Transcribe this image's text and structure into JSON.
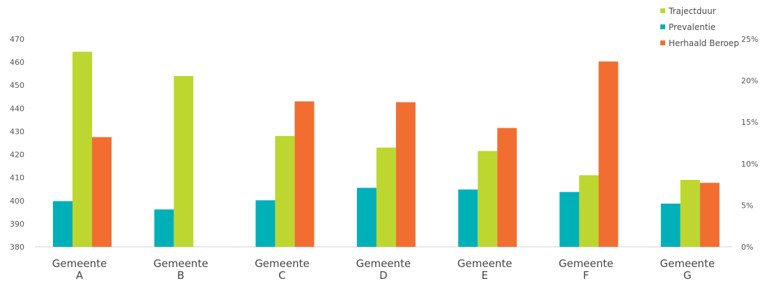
{
  "chart_data": {
    "type": "bar",
    "title": "",
    "xlabel": "",
    "ylabel": "",
    "categories": [
      [
        "Gemeente",
        "A"
      ],
      [
        "Gemeente",
        "B"
      ],
      [
        "Gemeente",
        "C"
      ],
      [
        "Gemeente",
        "D"
      ],
      [
        "Gemeente",
        "E"
      ],
      [
        "Gemeente",
        "F"
      ],
      [
        "Gemeente",
        "G"
      ]
    ],
    "ylim_left": [
      380,
      470
    ],
    "yticks_left": [
      "380",
      "390",
      "400",
      "410",
      "420",
      "430",
      "440",
      "450",
      "460",
      "470"
    ],
    "ylim_right": [
      0,
      25
    ],
    "yticks_right": [
      "0%",
      "5%",
      "10%",
      "15%",
      "20%",
      "25%"
    ],
    "legend_position": "top-right",
    "grid": false,
    "series": [
      {
        "name": "Prevalentie",
        "axis": "right",
        "color": "#00B0B9",
        "values": [
          5.5,
          4.5,
          5.6,
          7.1,
          6.9,
          6.6,
          5.2
        ]
      },
      {
        "name": "Trajectduur",
        "axis": "left",
        "color": "#BDD630",
        "values": [
          464.5,
          454,
          428,
          423,
          421.5,
          411,
          409
        ]
      },
      {
        "name": "Herhaald Beroep",
        "axis": "right",
        "color": "#F26E30",
        "values": [
          13.2,
          null,
          17.5,
          17.4,
          14.3,
          22.3,
          7.7
        ]
      }
    ],
    "legend_order": [
      1,
      0,
      2
    ]
  }
}
